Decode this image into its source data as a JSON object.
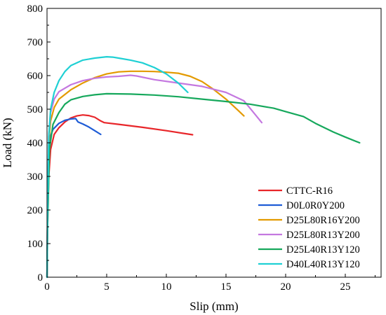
{
  "chart_data": {
    "type": "line",
    "xlabel": "Slip (mm)",
    "ylabel": "Load (kN)",
    "xlim": [
      0,
      28
    ],
    "ylim": [
      0,
      800
    ],
    "xticks": [
      0,
      5,
      10,
      15,
      20,
      25
    ],
    "yticks": [
      0,
      100,
      200,
      300,
      400,
      500,
      600,
      700,
      800
    ],
    "grid": false,
    "legend_position": "bottom-right",
    "series": [
      {
        "name": "CTTC-R16",
        "color": "#e8262a",
        "points": [
          [
            0,
            0
          ],
          [
            0.05,
            150
          ],
          [
            0.15,
            300
          ],
          [
            0.3,
            380
          ],
          [
            0.6,
            425
          ],
          [
            1,
            445
          ],
          [
            1.5,
            462
          ],
          [
            2,
            474
          ],
          [
            2.5,
            480
          ],
          [
            3,
            483
          ],
          [
            3.5,
            481
          ],
          [
            4,
            476
          ],
          [
            4.5,
            465
          ],
          [
            4.8,
            460
          ],
          [
            6,
            455
          ],
          [
            8,
            446
          ],
          [
            10,
            436
          ],
          [
            12.2,
            424
          ]
        ]
      },
      {
        "name": "D0L0R0Y200",
        "color": "#1e5cd6",
        "points": [
          [
            0,
            0
          ],
          [
            0.05,
            200
          ],
          [
            0.15,
            380
          ],
          [
            0.3,
            420
          ],
          [
            0.5,
            440
          ],
          [
            1,
            458
          ],
          [
            1.5,
            467
          ],
          [
            2,
            471
          ],
          [
            2.4,
            472
          ],
          [
            2.6,
            462
          ],
          [
            3,
            456
          ],
          [
            3.5,
            447
          ],
          [
            4,
            436
          ],
          [
            4.5,
            425
          ]
        ]
      },
      {
        "name": "D25L80R16Y200",
        "color": "#e39a00",
        "points": [
          [
            0,
            0
          ],
          [
            0.05,
            200
          ],
          [
            0.15,
            400
          ],
          [
            0.3,
            465
          ],
          [
            0.6,
            505
          ],
          [
            1,
            530
          ],
          [
            2,
            558
          ],
          [
            3,
            578
          ],
          [
            4,
            594
          ],
          [
            5,
            605
          ],
          [
            6,
            611
          ],
          [
            7,
            613
          ],
          [
            8,
            613
          ],
          [
            9,
            612
          ],
          [
            10,
            610
          ],
          [
            11,
            607
          ],
          [
            12,
            598
          ],
          [
            13,
            582
          ],
          [
            14,
            558
          ],
          [
            15,
            530
          ],
          [
            16,
            497
          ],
          [
            16.5,
            480
          ]
        ]
      },
      {
        "name": "D25L80R13Y200",
        "color": "#c478e0",
        "points": [
          [
            0,
            0
          ],
          [
            0.05,
            200
          ],
          [
            0.15,
            420
          ],
          [
            0.3,
            490
          ],
          [
            0.6,
            530
          ],
          [
            1,
            552
          ],
          [
            2,
            573
          ],
          [
            3,
            585
          ],
          [
            4,
            592
          ],
          [
            5,
            596
          ],
          [
            6,
            598
          ],
          [
            7,
            601
          ],
          [
            7.5,
            599
          ],
          [
            9,
            588
          ],
          [
            11,
            578
          ],
          [
            13,
            568
          ],
          [
            15,
            550
          ],
          [
            16.5,
            525
          ],
          [
            17.2,
            495
          ],
          [
            18,
            460
          ]
        ]
      },
      {
        "name": "D25L40R13Y120",
        "color": "#16a85c",
        "points": [
          [
            0,
            0
          ],
          [
            0.05,
            150
          ],
          [
            0.2,
            380
          ],
          [
            0.5,
            455
          ],
          [
            1,
            490
          ],
          [
            1.5,
            515
          ],
          [
            2,
            528
          ],
          [
            3,
            538
          ],
          [
            4,
            543
          ],
          [
            5,
            546
          ],
          [
            7,
            545
          ],
          [
            9,
            542
          ],
          [
            11,
            537
          ],
          [
            13,
            530
          ],
          [
            15,
            523
          ],
          [
            17,
            515
          ],
          [
            19,
            503
          ],
          [
            20,
            493
          ],
          [
            21.5,
            478
          ],
          [
            22.5,
            458
          ],
          [
            24,
            432
          ],
          [
            25,
            417
          ],
          [
            26.2,
            400
          ]
        ]
      },
      {
        "name": "D40L40R13Y120",
        "color": "#1fd0d4",
        "points": [
          [
            0,
            0
          ],
          [
            0.05,
            200
          ],
          [
            0.15,
            420
          ],
          [
            0.3,
            500
          ],
          [
            0.6,
            550
          ],
          [
            1,
            585
          ],
          [
            1.5,
            612
          ],
          [
            2,
            630
          ],
          [
            3,
            646
          ],
          [
            4,
            652
          ],
          [
            5,
            656
          ],
          [
            5.5,
            655
          ],
          [
            6,
            652
          ],
          [
            7,
            646
          ],
          [
            8,
            638
          ],
          [
            9,
            624
          ],
          [
            10,
            605
          ],
          [
            11,
            578
          ],
          [
            11.8,
            550
          ]
        ]
      }
    ]
  }
}
